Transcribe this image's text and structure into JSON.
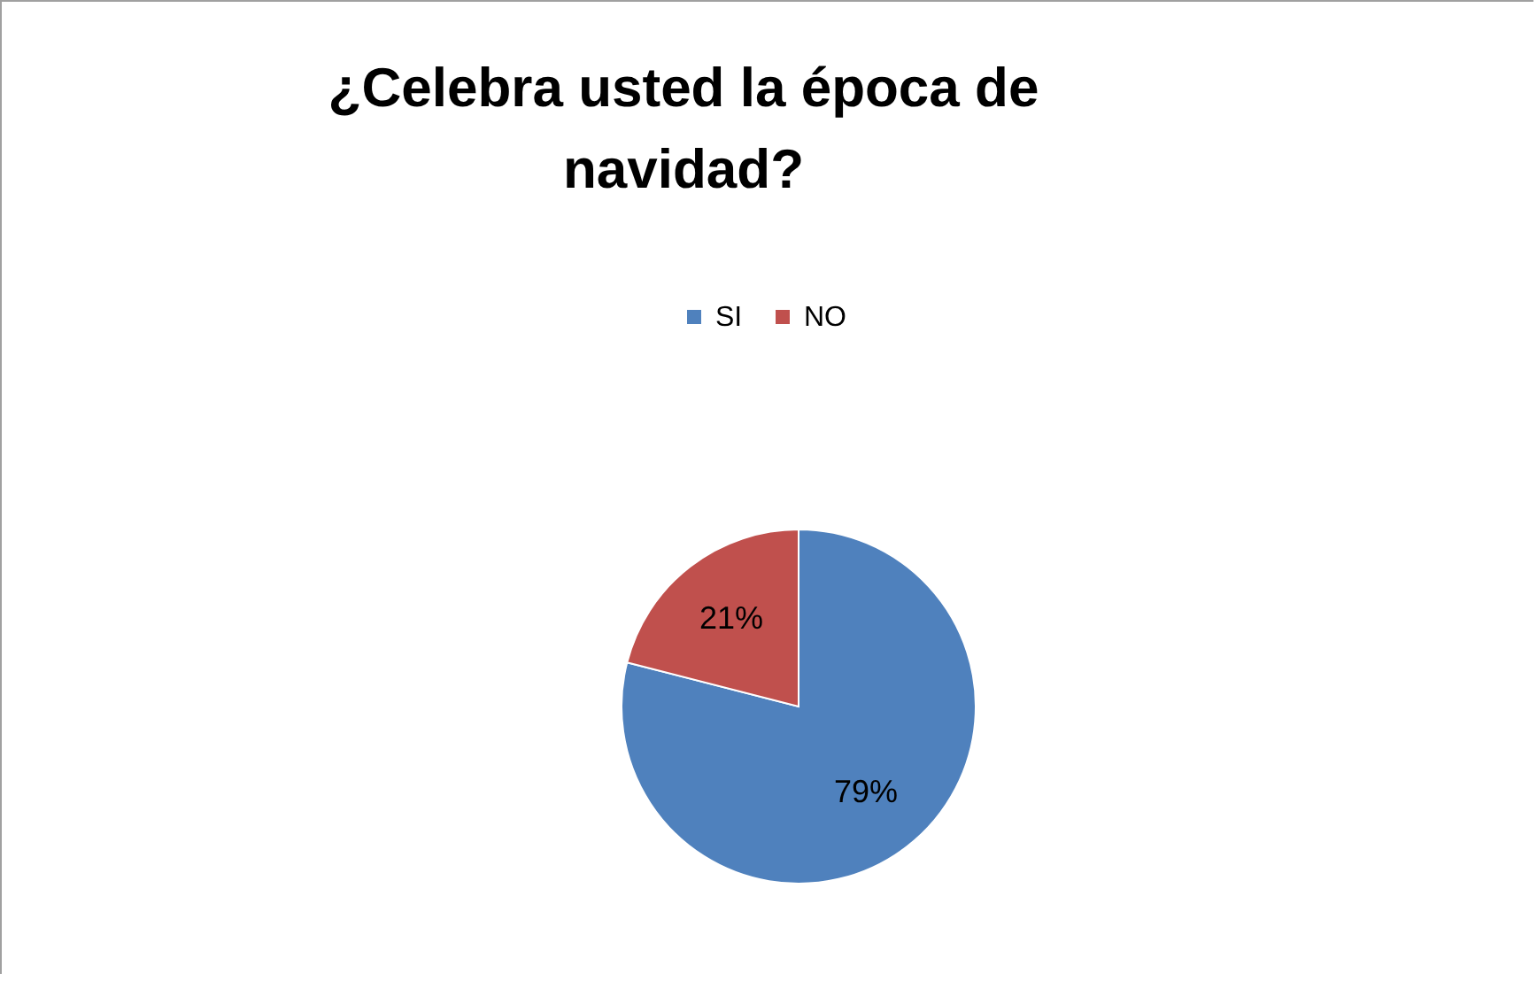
{
  "chart_data": {
    "type": "pie",
    "title": "¿Celebra usted la época de navidad?",
    "categories": [
      "SI",
      "NO"
    ],
    "values": [
      79,
      21
    ],
    "colors": [
      "#4f81bd",
      "#c0504d"
    ],
    "value_labels": [
      "79%",
      "21%"
    ],
    "legend": "top"
  }
}
